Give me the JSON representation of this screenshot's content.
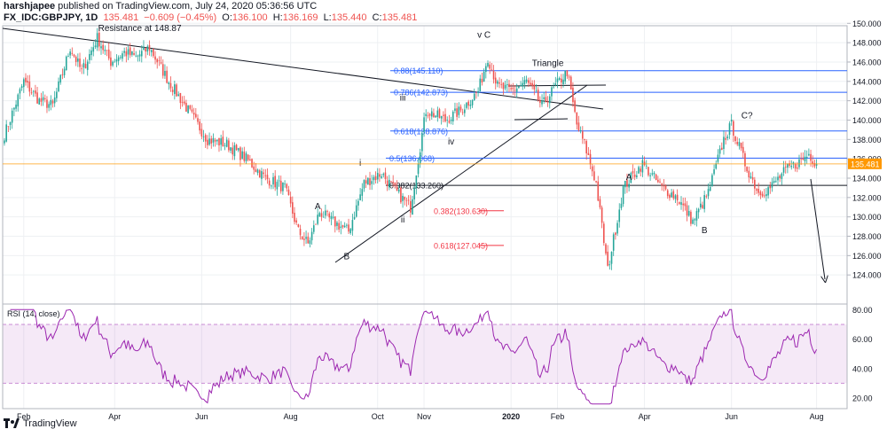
{
  "header": {
    "publisher": "harshjapee",
    "published_text": "published on TradingView.com, July 24, 2020 05:36:56 UTC",
    "symbol": "FX_IDC:GBPJPY, 1D",
    "last": "135.481",
    "change": "−0.609 (−0.45%)",
    "o_label": "O:",
    "o_value": "136.100",
    "h_label": "H:",
    "h_value": "136.169",
    "l_label": "L:",
    "l_value": "135.440",
    "c_label": "C:",
    "c_value": "135.481"
  },
  "footer": {
    "brand": "TradingView"
  },
  "chart_data": {
    "type": "candlestick",
    "price_axis": {
      "min": 123,
      "max": 150,
      "ticks": [
        124,
        126,
        128,
        130,
        132,
        134,
        136,
        138,
        140,
        142,
        144,
        146,
        148,
        150
      ]
    },
    "price_tick_labels": [
      "124.000",
      "126.000",
      "128.000",
      "130.000",
      "132.000",
      "134.000",
      "136.000",
      "138.000",
      "140.000",
      "142.000",
      "144.000",
      "146.000",
      "148.000",
      "150.000"
    ],
    "time_labels": [
      "Feb",
      "Apr",
      "Jun",
      "Aug",
      "Oct",
      "Nov",
      "2020",
      "Feb",
      "Apr",
      "Jun",
      "Aug"
    ],
    "time_label_index": [
      10,
      57,
      102,
      148,
      193,
      217,
      262,
      286,
      331,
      376,
      420
    ],
    "current_price": {
      "value": 135.481,
      "label": "135.481",
      "color": "#ff9800"
    },
    "up_color": "#26a69a",
    "down_color": "#ef5350",
    "waypoints": [
      [
        0,
        138.5
      ],
      [
        10,
        144.0
      ],
      [
        18,
        142.0
      ],
      [
        25,
        141.5
      ],
      [
        34,
        147.5
      ],
      [
        40,
        145.0
      ],
      [
        48,
        148.5
      ],
      [
        55,
        146.0
      ],
      [
        62,
        147.0
      ],
      [
        68,
        146.5
      ],
      [
        75,
        147.5
      ],
      [
        85,
        144.0
      ],
      [
        95,
        141.0
      ],
      [
        105,
        138.0
      ],
      [
        115,
        137.5
      ],
      [
        125,
        136.0
      ],
      [
        135,
        134.0
      ],
      [
        145,
        133.0
      ],
      [
        152,
        128.5
      ],
      [
        157,
        127.2
      ],
      [
        163,
        130.5
      ],
      [
        170,
        129.5
      ],
      [
        178,
        128.5
      ],
      [
        186,
        133.5
      ],
      [
        195,
        134.5
      ],
      [
        203,
        132.5
      ],
      [
        210,
        131.0
      ],
      [
        218,
        141.0
      ],
      [
        228,
        140.0
      ],
      [
        236,
        141.0
      ],
      [
        245,
        143.0
      ],
      [
        250,
        146.5
      ],
      [
        255,
        143.5
      ],
      [
        262,
        143.0
      ],
      [
        270,
        144.0
      ],
      [
        278,
        141.5
      ],
      [
        285,
        143.5
      ],
      [
        291,
        145.0
      ],
      [
        296,
        139.5
      ],
      [
        300,
        137.5
      ],
      [
        306,
        133.5
      ],
      [
        312,
        124.5
      ],
      [
        320,
        133.0
      ],
      [
        330,
        135.5
      ],
      [
        340,
        133.0
      ],
      [
        348,
        132.0
      ],
      [
        356,
        129.5
      ],
      [
        364,
        132.5
      ],
      [
        372,
        138.0
      ],
      [
        376,
        139.5
      ],
      [
        383,
        135.5
      ],
      [
        390,
        132.5
      ],
      [
        396,
        133.0
      ],
      [
        404,
        134.8
      ],
      [
        410,
        135.5
      ],
      [
        416,
        136.5
      ],
      [
        420,
        135.481
      ]
    ],
    "fib_levels": [
      {
        "ratio": "0.88",
        "value": 145.11,
        "label": "0.88(145.110)",
        "color": "#2962ff"
      },
      {
        "ratio": "0.786",
        "value": 142.873,
        "label": "0.786(142.873)",
        "color": "#2962ff"
      },
      {
        "ratio": "0.618",
        "value": 138.876,
        "label": "0.618(138.876)",
        "color": "#2962ff"
      },
      {
        "ratio": "0.5",
        "value": 136.068,
        "label": "0.5(136.068)",
        "color": "#2962ff"
      },
      {
        "ratio": "0.382",
        "value": 133.26,
        "label": "0.382(133.260)",
        "color": "#131722"
      }
    ],
    "fib_projections": [
      {
        "value": 130.63,
        "label": "0.382(130.630)",
        "color": "#f23645"
      },
      {
        "value": 127.045,
        "label": "0.618(127.045)",
        "color": "#f23645"
      }
    ],
    "annotations": [
      {
        "text": "Resistance at 148.87",
        "x": 70,
        "price": 149.2
      },
      {
        "text": "v C",
        "x": 248,
        "price": 148.5
      },
      {
        "text": "Triangle",
        "x": 281,
        "price": 145.6
      },
      {
        "text": "iii",
        "x": 206,
        "price": 142.0
      },
      {
        "text": "iv",
        "x": 231,
        "price": 137.5
      },
      {
        "text": "i",
        "x": 184,
        "price": 135.3
      },
      {
        "text": "ii",
        "x": 206,
        "price": 129.4
      },
      {
        "text": "A",
        "x": 162,
        "price": 130.8
      },
      {
        "text": "B",
        "x": 177,
        "price": 125.6
      },
      {
        "text": "A",
        "x": 323,
        "price": 133.8
      },
      {
        "text": "B",
        "x": 362,
        "price": 128.3
      },
      {
        "text": "C?",
        "x": 384,
        "price": 140.2
      }
    ],
    "rsi": {
      "label": "RSI (14, close)",
      "min": 14,
      "max": 82,
      "ticks": [
        20,
        40,
        60,
        80
      ],
      "tick_labels": [
        "20.00",
        "40.00",
        "60.00",
        "80.00"
      ],
      "overbought": 70,
      "oversold": 30,
      "color": "#9c27b0"
    }
  }
}
